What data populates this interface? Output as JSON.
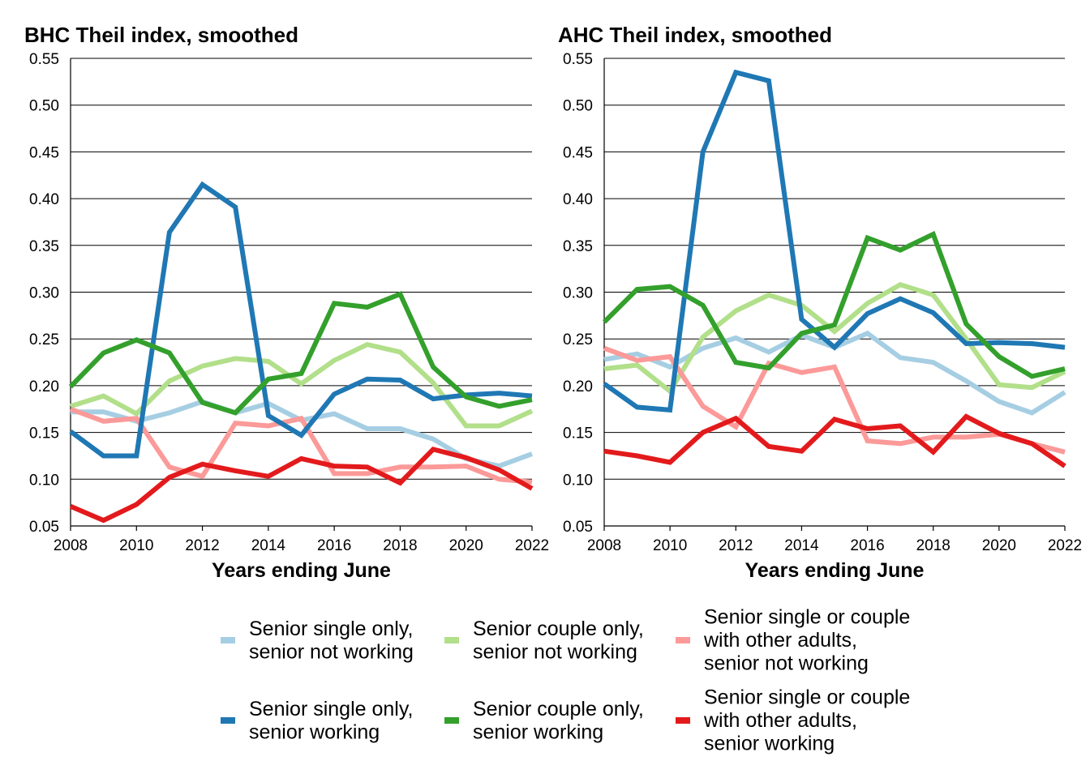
{
  "xlabel": "Years ending June",
  "legend": [
    {
      "label": [
        "Senior single only,",
        "senior not working"
      ],
      "color": "#a6cee3"
    },
    {
      "label": [
        "Senior couple only,",
        "senior not working"
      ],
      "color": "#b2df8a"
    },
    {
      "label": [
        "Senior single or couple",
        "with other adults,",
        "senior not working"
      ],
      "color": "#fb9a99"
    },
    {
      "label": [
        "Senior single only,",
        "senior working"
      ],
      "color": "#1f78b4"
    },
    {
      "label": [
        "Senior couple only,",
        "senior working"
      ],
      "color": "#33a02c"
    },
    {
      "label": [
        "Senior single or couple",
        "with other adults,",
        "senior working"
      ],
      "color": "#e31a1c"
    }
  ],
  "chart_data": [
    {
      "type": "line",
      "title": "BHC Theil index, smoothed",
      "xlabel": "Years ending June",
      "ylabel": "",
      "x": [
        2008,
        2009,
        2010,
        2011,
        2012,
        2013,
        2014,
        2015,
        2016,
        2017,
        2018,
        2019,
        2020,
        2021,
        2022
      ],
      "xticks": [
        "2008",
        "2010",
        "2012",
        "2014",
        "2016",
        "2018",
        "2020",
        "2022"
      ],
      "yticks": [
        "0.05",
        "0.10",
        "0.15",
        "0.20",
        "0.25",
        "0.30",
        "0.35",
        "0.40",
        "0.45",
        "0.50",
        "0.55"
      ],
      "xlim": [
        2008,
        2022
      ],
      "ylim": [
        0.05,
        0.55
      ],
      "grid": "horizontal",
      "series": [
        {
          "name": "Senior single only, senior not working",
          "color": "#a6cee3",
          "values": [
            0.172,
            0.172,
            0.162,
            0.171,
            0.183,
            0.171,
            0.181,
            0.163,
            0.17,
            0.154,
            0.154,
            0.143,
            0.122,
            0.114,
            0.127
          ]
        },
        {
          "name": "Senior couple only, senior not working",
          "color": "#b2df8a",
          "values": [
            0.178,
            0.189,
            0.17,
            0.205,
            0.221,
            0.229,
            0.226,
            0.202,
            0.227,
            0.244,
            0.236,
            0.203,
            0.157,
            0.157,
            0.173
          ]
        },
        {
          "name": "Senior single or couple with other adults, senior not working",
          "color": "#fb9a99",
          "values": [
            0.175,
            0.162,
            0.165,
            0.113,
            0.103,
            0.16,
            0.157,
            0.165,
            0.106,
            0.106,
            0.113,
            0.113,
            0.114,
            0.1,
            0.097
          ]
        },
        {
          "name": "Senior single only, senior working",
          "color": "#1f78b4",
          "values": [
            0.151,
            0.125,
            0.125,
            0.364,
            0.415,
            0.391,
            0.168,
            0.147,
            0.191,
            0.207,
            0.206,
            0.186,
            0.19,
            0.192,
            0.189
          ]
        },
        {
          "name": "Senior couple only, senior working",
          "color": "#33a02c",
          "values": [
            0.199,
            0.235,
            0.249,
            0.235,
            0.182,
            0.171,
            0.207,
            0.213,
            0.288,
            0.284,
            0.298,
            0.22,
            0.188,
            0.178,
            0.185
          ]
        },
        {
          "name": "Senior single or couple with other adults, senior working",
          "color": "#e31a1c",
          "values": [
            0.071,
            0.056,
            0.073,
            0.102,
            0.116,
            0.109,
            0.103,
            0.122,
            0.114,
            0.113,
            0.096,
            0.132,
            0.123,
            0.11,
            0.09
          ]
        }
      ]
    },
    {
      "type": "line",
      "title": "AHC Theil index, smoothed",
      "xlabel": "Years ending June",
      "ylabel": "",
      "x": [
        2008,
        2009,
        2010,
        2011,
        2012,
        2013,
        2014,
        2015,
        2016,
        2017,
        2018,
        2019,
        2020,
        2021,
        2022
      ],
      "xticks": [
        "2008",
        "2010",
        "2012",
        "2014",
        "2016",
        "2018",
        "2020",
        "2022"
      ],
      "yticks": [
        "0.05",
        "0.10",
        "0.15",
        "0.20",
        "0.25",
        "0.30",
        "0.35",
        "0.40",
        "0.45",
        "0.50",
        "0.55"
      ],
      "xlim": [
        2008,
        2022
      ],
      "ylim": [
        0.05,
        0.55
      ],
      "grid": "horizontal",
      "series": [
        {
          "name": "Senior single only, senior not working",
          "color": "#a6cee3",
          "values": [
            0.228,
            0.234,
            0.22,
            0.24,
            0.251,
            0.236,
            0.254,
            0.241,
            0.256,
            0.23,
            0.225,
            0.205,
            0.183,
            0.171,
            0.193
          ]
        },
        {
          "name": "Senior couple only, senior not working",
          "color": "#b2df8a",
          "values": [
            0.218,
            0.222,
            0.194,
            0.252,
            0.28,
            0.297,
            0.286,
            0.258,
            0.288,
            0.308,
            0.297,
            0.25,
            0.201,
            0.198,
            0.215
          ]
        },
        {
          "name": "Senior single or couple with other adults, senior not working",
          "color": "#fb9a99",
          "values": [
            0.24,
            0.227,
            0.231,
            0.178,
            0.156,
            0.224,
            0.214,
            0.22,
            0.141,
            0.138,
            0.145,
            0.145,
            0.148,
            0.138,
            0.129
          ]
        },
        {
          "name": "Senior single only, senior working",
          "color": "#1f78b4",
          "values": [
            0.202,
            0.177,
            0.174,
            0.45,
            0.535,
            0.526,
            0.271,
            0.241,
            0.277,
            0.293,
            0.278,
            0.245,
            0.246,
            0.245,
            0.241
          ]
        },
        {
          "name": "Senior couple only, senior working",
          "color": "#33a02c",
          "values": [
            0.268,
            0.303,
            0.306,
            0.286,
            0.225,
            0.219,
            0.256,
            0.265,
            0.358,
            0.345,
            0.362,
            0.266,
            0.231,
            0.21,
            0.218
          ]
        },
        {
          "name": "Senior single or couple with other adults, senior working",
          "color": "#e31a1c",
          "values": [
            0.13,
            0.125,
            0.118,
            0.15,
            0.165,
            0.135,
            0.13,
            0.164,
            0.154,
            0.157,
            0.129,
            0.167,
            0.149,
            0.138,
            0.114
          ]
        }
      ]
    }
  ]
}
